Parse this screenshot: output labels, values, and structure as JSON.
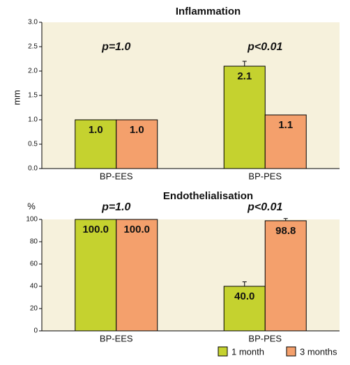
{
  "chart_data": [
    {
      "type": "bar",
      "title": "Inflammation",
      "y_label": "mm",
      "categories": [
        "BP-EES",
        "BP-PES"
      ],
      "series": [
        {
          "name": "1 month",
          "color": "#c5d22f",
          "values": [
            1.0,
            2.1
          ],
          "value_labels": [
            "1.0",
            "2.1"
          ],
          "errors": [
            null,
            0.1
          ]
        },
        {
          "name": "3 months",
          "color": "#f4a06c",
          "values": [
            1.0,
            1.1
          ],
          "value_labels": [
            "1.0",
            "1.1"
          ],
          "errors": [
            null,
            null
          ]
        }
      ],
      "annotations": [
        "p=1.0",
        "p<0.01"
      ],
      "ylim": [
        0,
        3
      ],
      "yticks": [
        {
          "value": 0,
          "label": "0.0"
        },
        {
          "value": 0.5,
          "label": "0.5"
        },
        {
          "value": 1,
          "label": "1.0"
        },
        {
          "value": 1.5,
          "label": "1.5"
        },
        {
          "value": 2,
          "label": "2.0"
        },
        {
          "value": 2.5,
          "label": "2.5"
        },
        {
          "value": 3,
          "label": "3.0"
        }
      ],
      "background": "#f6f1dc"
    },
    {
      "type": "bar",
      "title": "Endothelialisation",
      "y_label": "%",
      "categories": [
        "BP-EES",
        "BP-PES"
      ],
      "series": [
        {
          "name": "1 month",
          "color": "#c5d22f",
          "values": [
            100.0,
            40.0
          ],
          "value_labels": [
            "100.0",
            "40.0"
          ],
          "errors": [
            null,
            4
          ]
        },
        {
          "name": "3 months",
          "color": "#f4a06c",
          "values": [
            100.0,
            98.8
          ],
          "value_labels": [
            "100.0",
            "98.8"
          ],
          "errors": [
            null,
            2
          ]
        }
      ],
      "annotations": [
        "p=1.0",
        "p<0.01"
      ],
      "ylim": [
        0,
        100
      ],
      "yticks": [
        0,
        20,
        40,
        60,
        80,
        100
      ],
      "background": "#f6f1dc",
      "legend": "bottom-right"
    }
  ]
}
